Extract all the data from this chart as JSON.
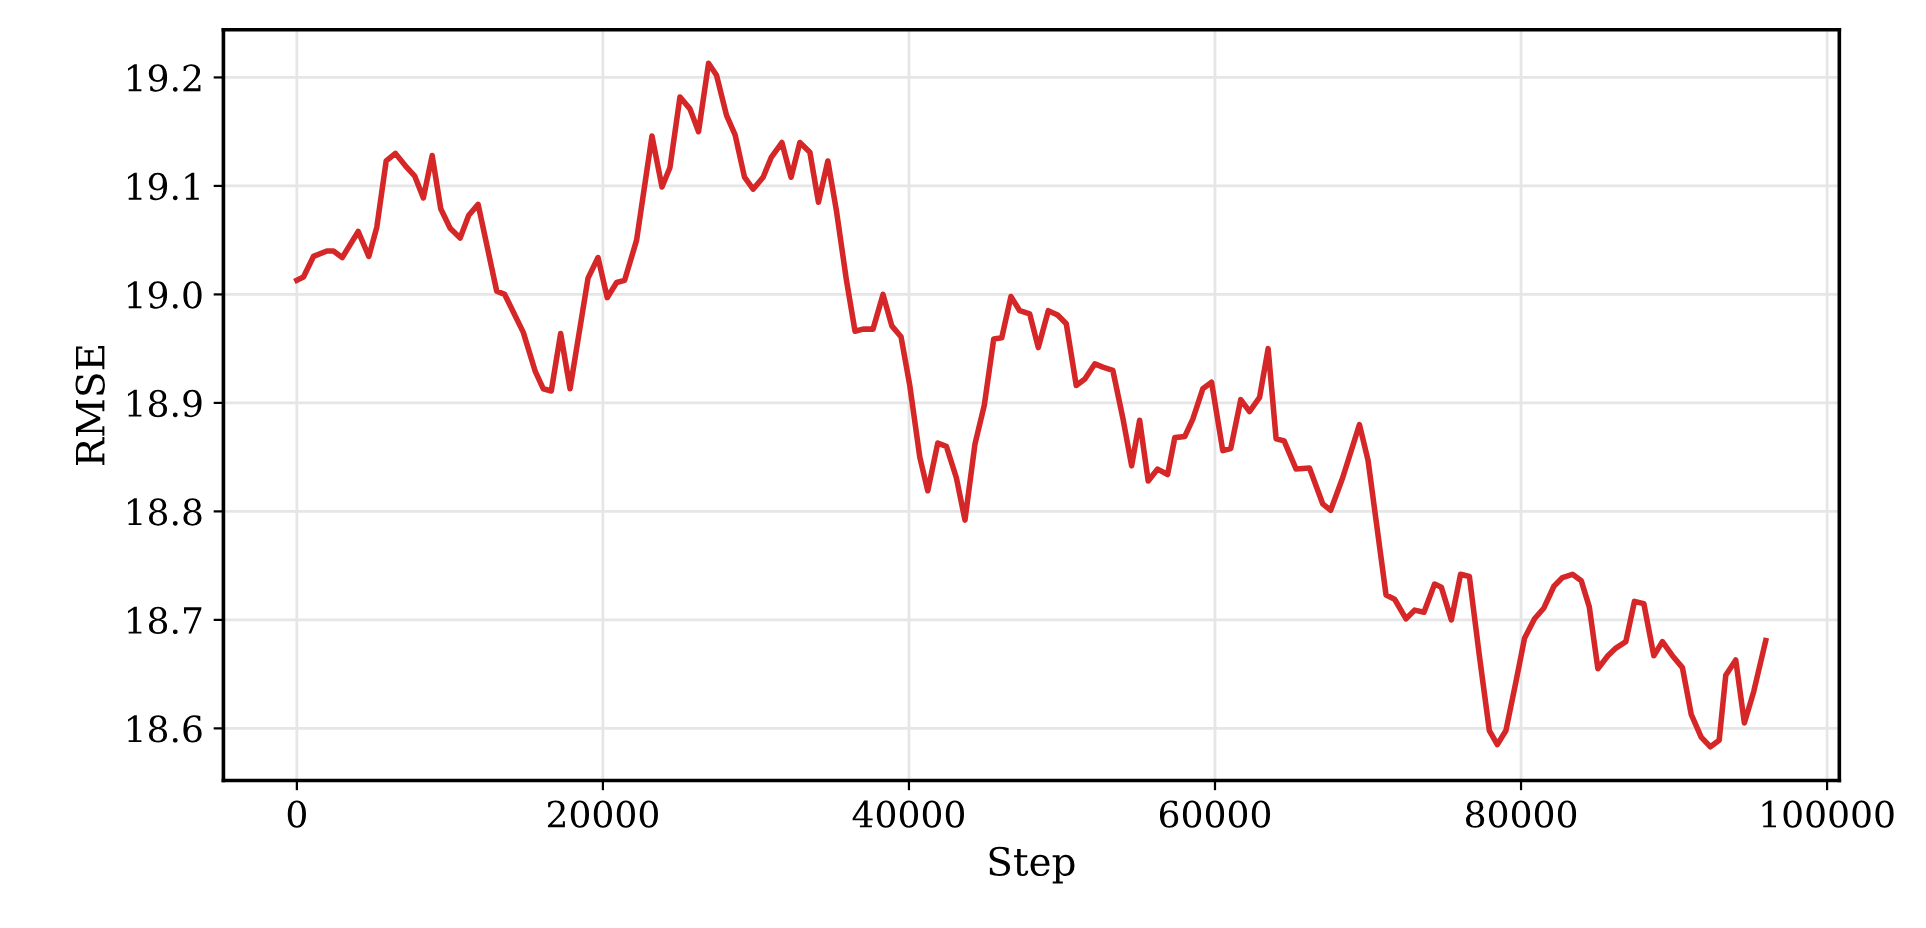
{
  "chart_data": {
    "type": "line",
    "xlabel": "Step",
    "ylabel": "RMSE",
    "xlim": [
      -4800,
      100800
    ],
    "ylim": [
      18.552,
      19.244
    ],
    "xticks": [
      0,
      20000,
      40000,
      60000,
      80000,
      100000
    ],
    "yticks": [
      18.6,
      18.7,
      18.8,
      18.9,
      {
        "value": 19,
        "label": "19.0"
      },
      19.1,
      19.2
    ],
    "grid": true,
    "marker": "none",
    "line_style": "solid",
    "series": [
      {
        "color": "#d62728",
        "x": [
          0,
          431,
          1084,
          1959,
          2390,
          2965,
          4009,
          4702,
          5224,
          5838,
          6439,
          7183,
          7705,
          8267,
          8842,
          9403,
          10017,
          10670,
          11232,
          11845,
          13060,
          13582,
          14797,
          15580,
          16103,
          16625,
          17239,
          17853,
          19028,
          19681,
          20282,
          20896,
          21418,
          22202,
          23207,
          23860,
          24383,
          25036,
          25689,
          26250,
          26903,
          27425,
          28079,
          28640,
          29254,
          29816,
          30469,
          30991,
          31696,
          32297,
          32872,
          33525,
          34087,
          34701,
          35262,
          35915,
          36477,
          36999,
          37652,
          38305,
          38880,
          39481,
          40055,
          40708,
          41231,
          41884,
          42445,
          43098,
          43660,
          44313,
          44926,
          45540,
          46062,
          46663,
          47238,
          47891,
          48453,
          49106,
          49719,
          50281,
          50934,
          51496,
          52149,
          52671,
          53324,
          53977,
          54552,
          55074,
          55636,
          56250,
          56903,
          57373,
          58026,
          58549,
          59202,
          59776,
          60508,
          61030,
          61683,
          62258,
          62911,
          63472,
          63994,
          64516,
          65300,
          66175,
          67037,
          67559,
          68343,
          69440,
          70002,
          71177,
          71739,
          72483,
          73045,
          73658,
          74350,
          74794,
          75447,
          76048,
          76623,
          77276,
          77929,
          78451,
          79013,
          79666,
          80228,
          80881,
          81495,
          82148,
          82709,
          83362,
          83937,
          84459,
          85021,
          85674,
          86196,
          86849,
          87411,
          88024,
          88677,
          89239,
          89892,
          90545,
          91120,
          91773,
          92374,
          92948,
          93379,
          94032,
          94594,
          95208,
          95991
        ],
        "values": [
          19.013,
          19.016,
          19.035,
          19.04,
          19.04,
          19.034,
          19.058,
          19.035,
          19.062,
          19.123,
          19.13,
          19.117,
          19.109,
          19.089,
          19.128,
          19.079,
          19.061,
          19.052,
          19.073,
          19.083,
          19.003,
          19.0,
          18.965,
          18.929,
          18.913,
          18.911,
          18.964,
          18.913,
          19.015,
          19.034,
          18.997,
          19.011,
          19.013,
          19.05,
          19.146,
          19.099,
          19.117,
          19.182,
          19.171,
          19.15,
          19.213,
          19.202,
          19.165,
          19.147,
          19.108,
          19.097,
          19.108,
          19.126,
          19.14,
          19.108,
          19.14,
          19.131,
          19.085,
          19.123,
          19.077,
          19.013,
          18.966,
          18.968,
          18.968,
          19.0,
          18.971,
          18.961,
          18.916,
          18.85,
          18.819,
          18.863,
          18.86,
          18.831,
          18.792,
          18.862,
          18.898,
          18.959,
          18.96,
          18.998,
          18.985,
          18.982,
          18.951,
          18.985,
          18.981,
          18.973,
          18.916,
          18.922,
          18.936,
          18.933,
          18.93,
          18.886,
          18.842,
          18.884,
          18.828,
          18.839,
          18.834,
          18.868,
          18.869,
          18.885,
          18.913,
          18.919,
          18.856,
          18.858,
          18.903,
          18.892,
          18.905,
          18.95,
          18.867,
          18.865,
          18.839,
          18.84,
          18.807,
          18.801,
          18.831,
          18.88,
          18.847,
          18.723,
          18.719,
          18.701,
          18.709,
          18.707,
          18.733,
          18.73,
          18.7,
          18.742,
          18.74,
          18.667,
          18.598,
          18.585,
          18.598,
          18.643,
          18.683,
          18.701,
          18.711,
          18.731,
          18.739,
          18.742,
          18.736,
          18.712,
          18.655,
          18.667,
          18.674,
          18.68,
          18.717,
          18.715,
          18.667,
          18.68,
          18.667,
          18.656,
          18.613,
          18.592,
          18.583,
          18.589,
          18.649,
          18.663,
          18.605,
          18.634,
          18.681
        ]
      }
    ]
  }
}
